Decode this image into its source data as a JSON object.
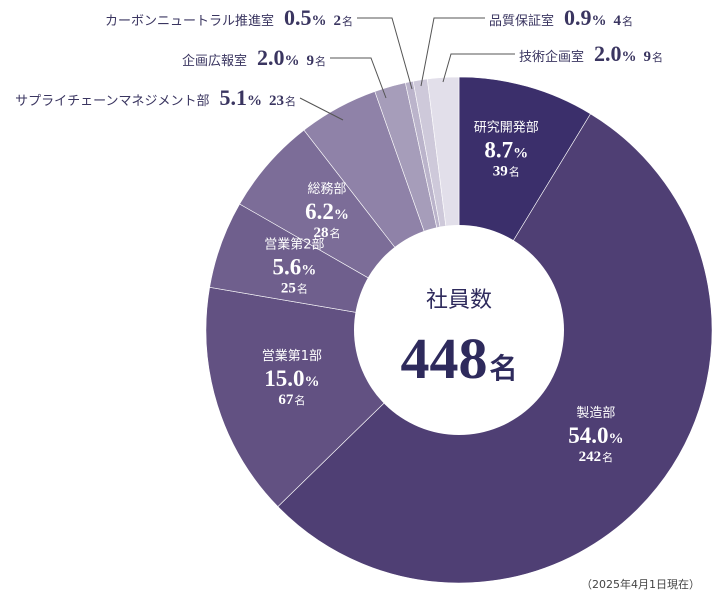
{
  "chart_data": {
    "type": "pie",
    "center_label": "社員数",
    "total": {
      "value": "448",
      "unit": "名"
    },
    "count_unit": "名",
    "slices": [
      {
        "name": "研究開発部",
        "percent": "8.7",
        "count": "39",
        "color": "#3b2f6b",
        "label_pos": "inside"
      },
      {
        "name": "製造部",
        "percent": "54.0",
        "count": "242",
        "color": "#4f3f74",
        "label_pos": "inside"
      },
      {
        "name": "営業第1部",
        "percent": "15.0",
        "count": "67",
        "color": "#625182",
        "label_pos": "inside"
      },
      {
        "name": "営業第2部",
        "percent": "5.6",
        "count": "25",
        "color": "#6f5f8d",
        "label_pos": "inside"
      },
      {
        "name": "総務部",
        "percent": "6.2",
        "count": "28",
        "color": "#7c6d98",
        "label_pos": "inside"
      },
      {
        "name": "サプライチェーンマネジメント部",
        "percent": "5.1",
        "count": "23",
        "color": "#8f82a8",
        "label_pos": "outside"
      },
      {
        "name": "企画広報室",
        "percent": "2.0",
        "count": "9",
        "color": "#a69dba",
        "label_pos": "outside"
      },
      {
        "name": "カーボンニュートラル推進室",
        "percent": "0.5",
        "count": "2",
        "color": "#bbb4cb",
        "label_pos": "outside"
      },
      {
        "name": "品質保証室",
        "percent": "0.9",
        "count": "4",
        "color": "#cec9da",
        "label_pos": "outside"
      },
      {
        "name": "技術企画室",
        "percent": "2.0",
        "count": "9",
        "color": "#e2dfea",
        "label_pos": "outside"
      }
    ],
    "note": "（2025年4月1日現在）"
  }
}
